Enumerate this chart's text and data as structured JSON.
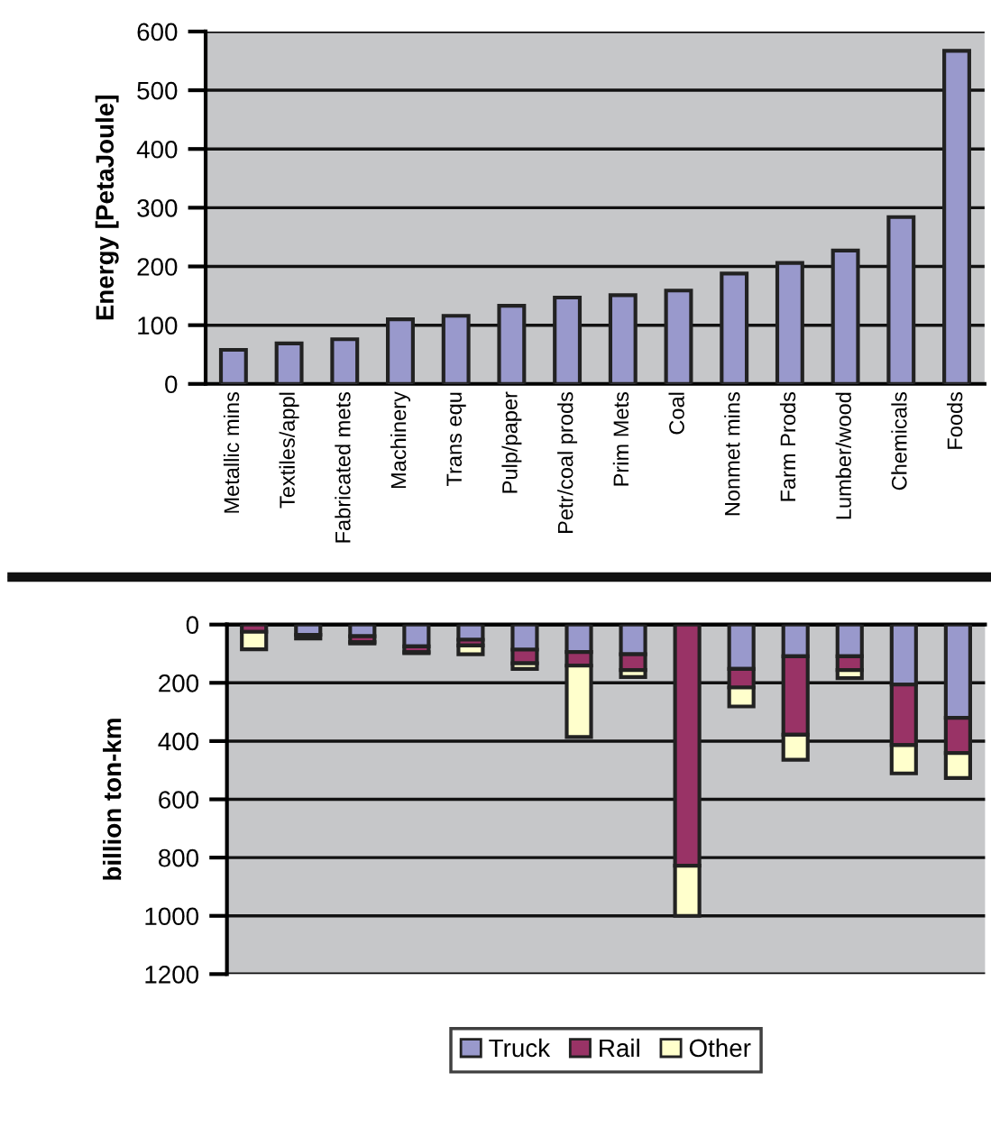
{
  "chart_data": [
    {
      "type": "bar",
      "ylabel": "Energy [PetaJoule]",
      "categories": [
        "Metallic mins",
        "Textiles/appl",
        "Fabricated mets",
        "Machinery",
        "Trans equ",
        "Pulp/paper",
        "Petr/coal prods",
        "Prim Mets",
        "Coal",
        "Nonmet mins",
        "Farm Prods",
        "Lumber/wood",
        "Chemicals",
        "Foods"
      ],
      "values": [
        58,
        69,
        76,
        110,
        116,
        133,
        147,
        151,
        159,
        188,
        206,
        227,
        284,
        567
      ],
      "color": "#9999cc",
      "ylim": [
        0,
        600
      ],
      "yticks": [
        0,
        100,
        200,
        300,
        400,
        500,
        600
      ],
      "grid": "y",
      "legend": false
    },
    {
      "type": "bar",
      "ylabel": "billion ton-km",
      "stacked": true,
      "categories": [
        null,
        null,
        null,
        null,
        null,
        null,
        null,
        null,
        null,
        null,
        null,
        null,
        null,
        null
      ],
      "series": [
        {
          "name": "Truck",
          "color": "#9999cc",
          "values": [
            null,
            35,
            40,
            75,
            52,
            86,
            94,
            102,
            null,
            152,
            109,
            109,
            206,
            320
          ]
        },
        {
          "name": "Rail",
          "color": "#993366",
          "values": [
            25,
            null,
            20,
            20,
            20,
            47,
            47,
            54,
            828,
            64,
            269,
            47,
            208,
            121
          ]
        },
        {
          "name": "Other",
          "color": "#ffffcc",
          "values": [
            60,
            13,
            5,
            3,
            30,
            19,
            245,
            24,
            172,
            65,
            86,
            28,
            97,
            86
          ]
        }
      ],
      "ylim": [
        1200,
        0
      ],
      "yticks": [
        0,
        200,
        400,
        600,
        800,
        1000,
        1200
      ],
      "grid": "y",
      "legend": "bottom"
    }
  ]
}
